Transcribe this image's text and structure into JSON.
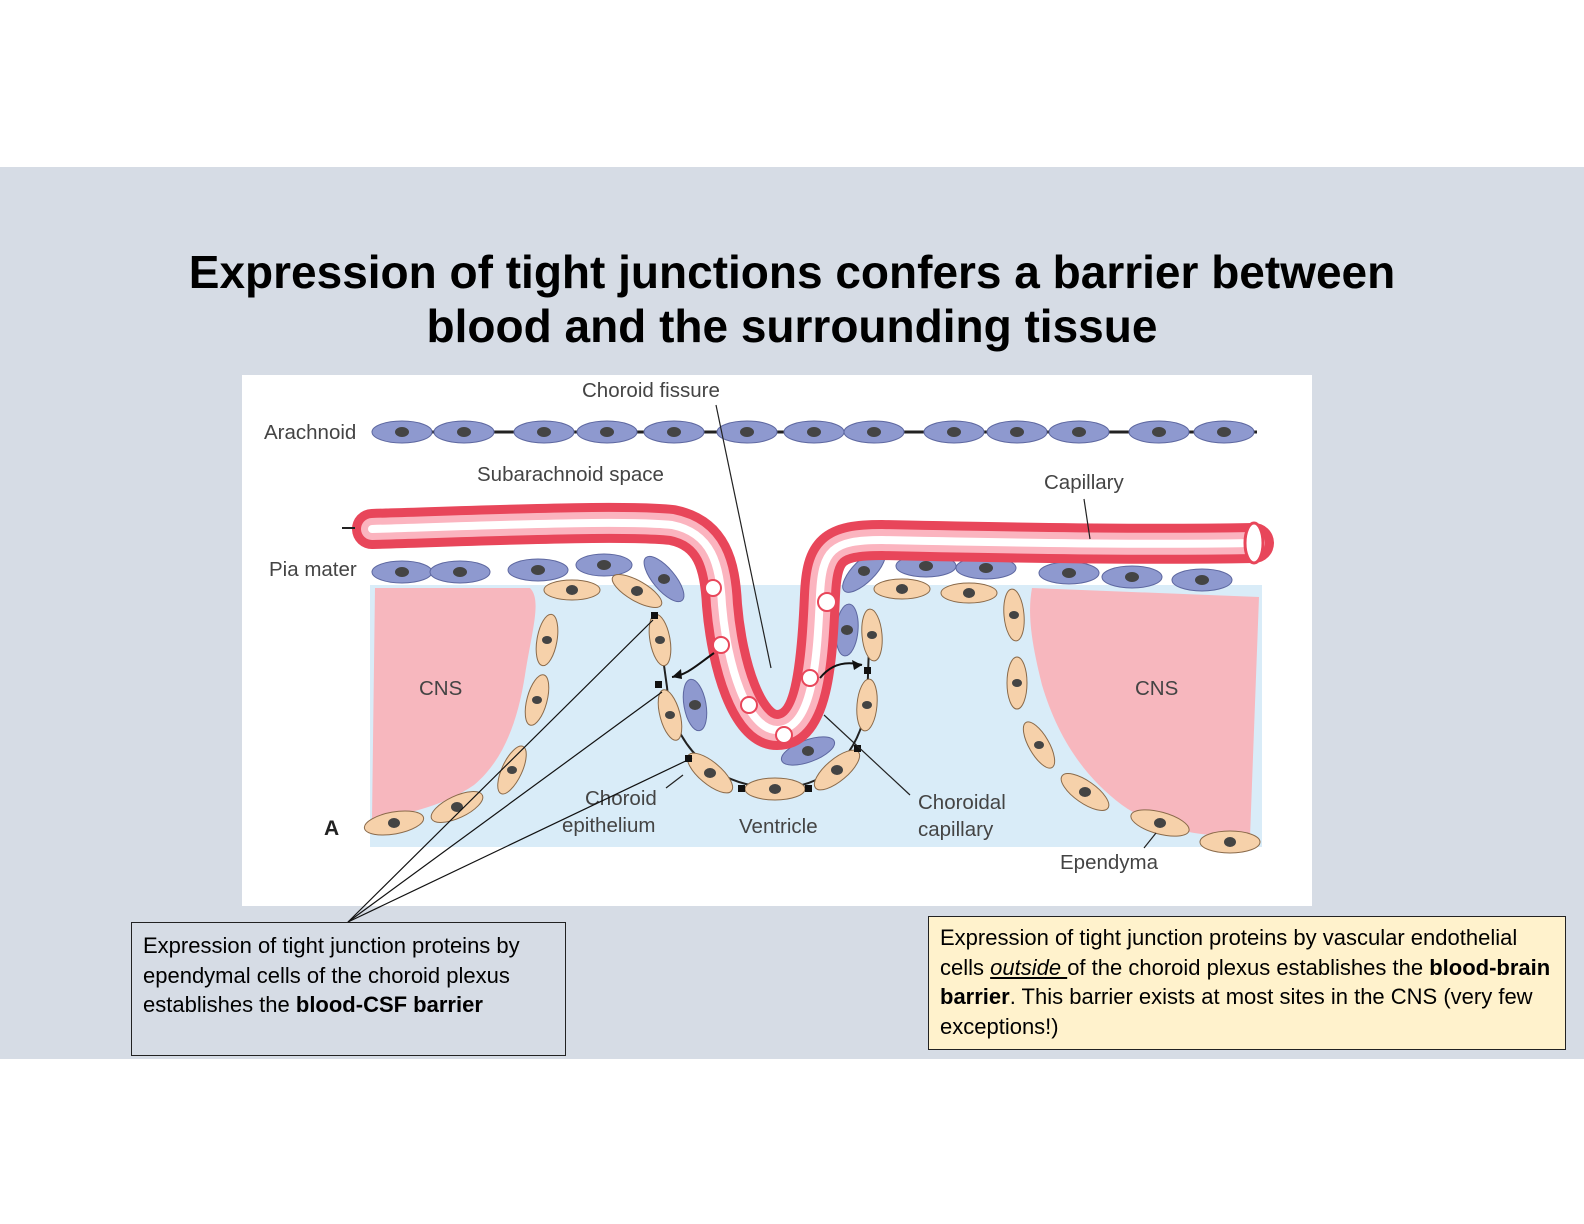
{
  "slide": {
    "title_line1": "Expression of tight junctions confers a barrier between",
    "title_line2": "blood and the surrounding tissue"
  },
  "figure": {
    "labels": {
      "choroid_fissure": "Choroid fissure",
      "arachnoid": "Arachnoid",
      "subarachnoid_space": "Subarachnoid space",
      "capillary": "Capillary",
      "pia_mater": "Pia mater",
      "cns_left": "CNS",
      "cns_right": "CNS",
      "panel_letter": "A",
      "choroid_epithelium_1": "Choroid",
      "choroid_epithelium_2": "epithelium",
      "ventricle": "Ventricle",
      "choroidal_capillary_1": "Choroidal",
      "choroidal_capillary_2": "capillary",
      "ependyma": "Ependyma"
    },
    "colors": {
      "blood_vessel": "#e8465a",
      "pia_arachnoid_cells": "#8e99cf",
      "ependymal_cells": "#f6d1aa",
      "cns_tissue": "#f7b7be",
      "ventricle_csf": "#d9ecf8"
    }
  },
  "callouts": {
    "left": {
      "text_1": "Expression of tight junction proteins by ependymal cells of the choroid plexus establishes the ",
      "bold": "blood-CSF barrier",
      "background": "#d6dce5"
    },
    "right": {
      "text_1": "Expression of tight junction proteins by vascular endothelial cells ",
      "underlined": "outside ",
      "text_2": "of the choroid plexus establishes the ",
      "bold": "blood-brain barrier",
      "text_3": ". This barrier exists at most sites in the CNS (very few exceptions!)",
      "background": "#fff2cc"
    }
  }
}
